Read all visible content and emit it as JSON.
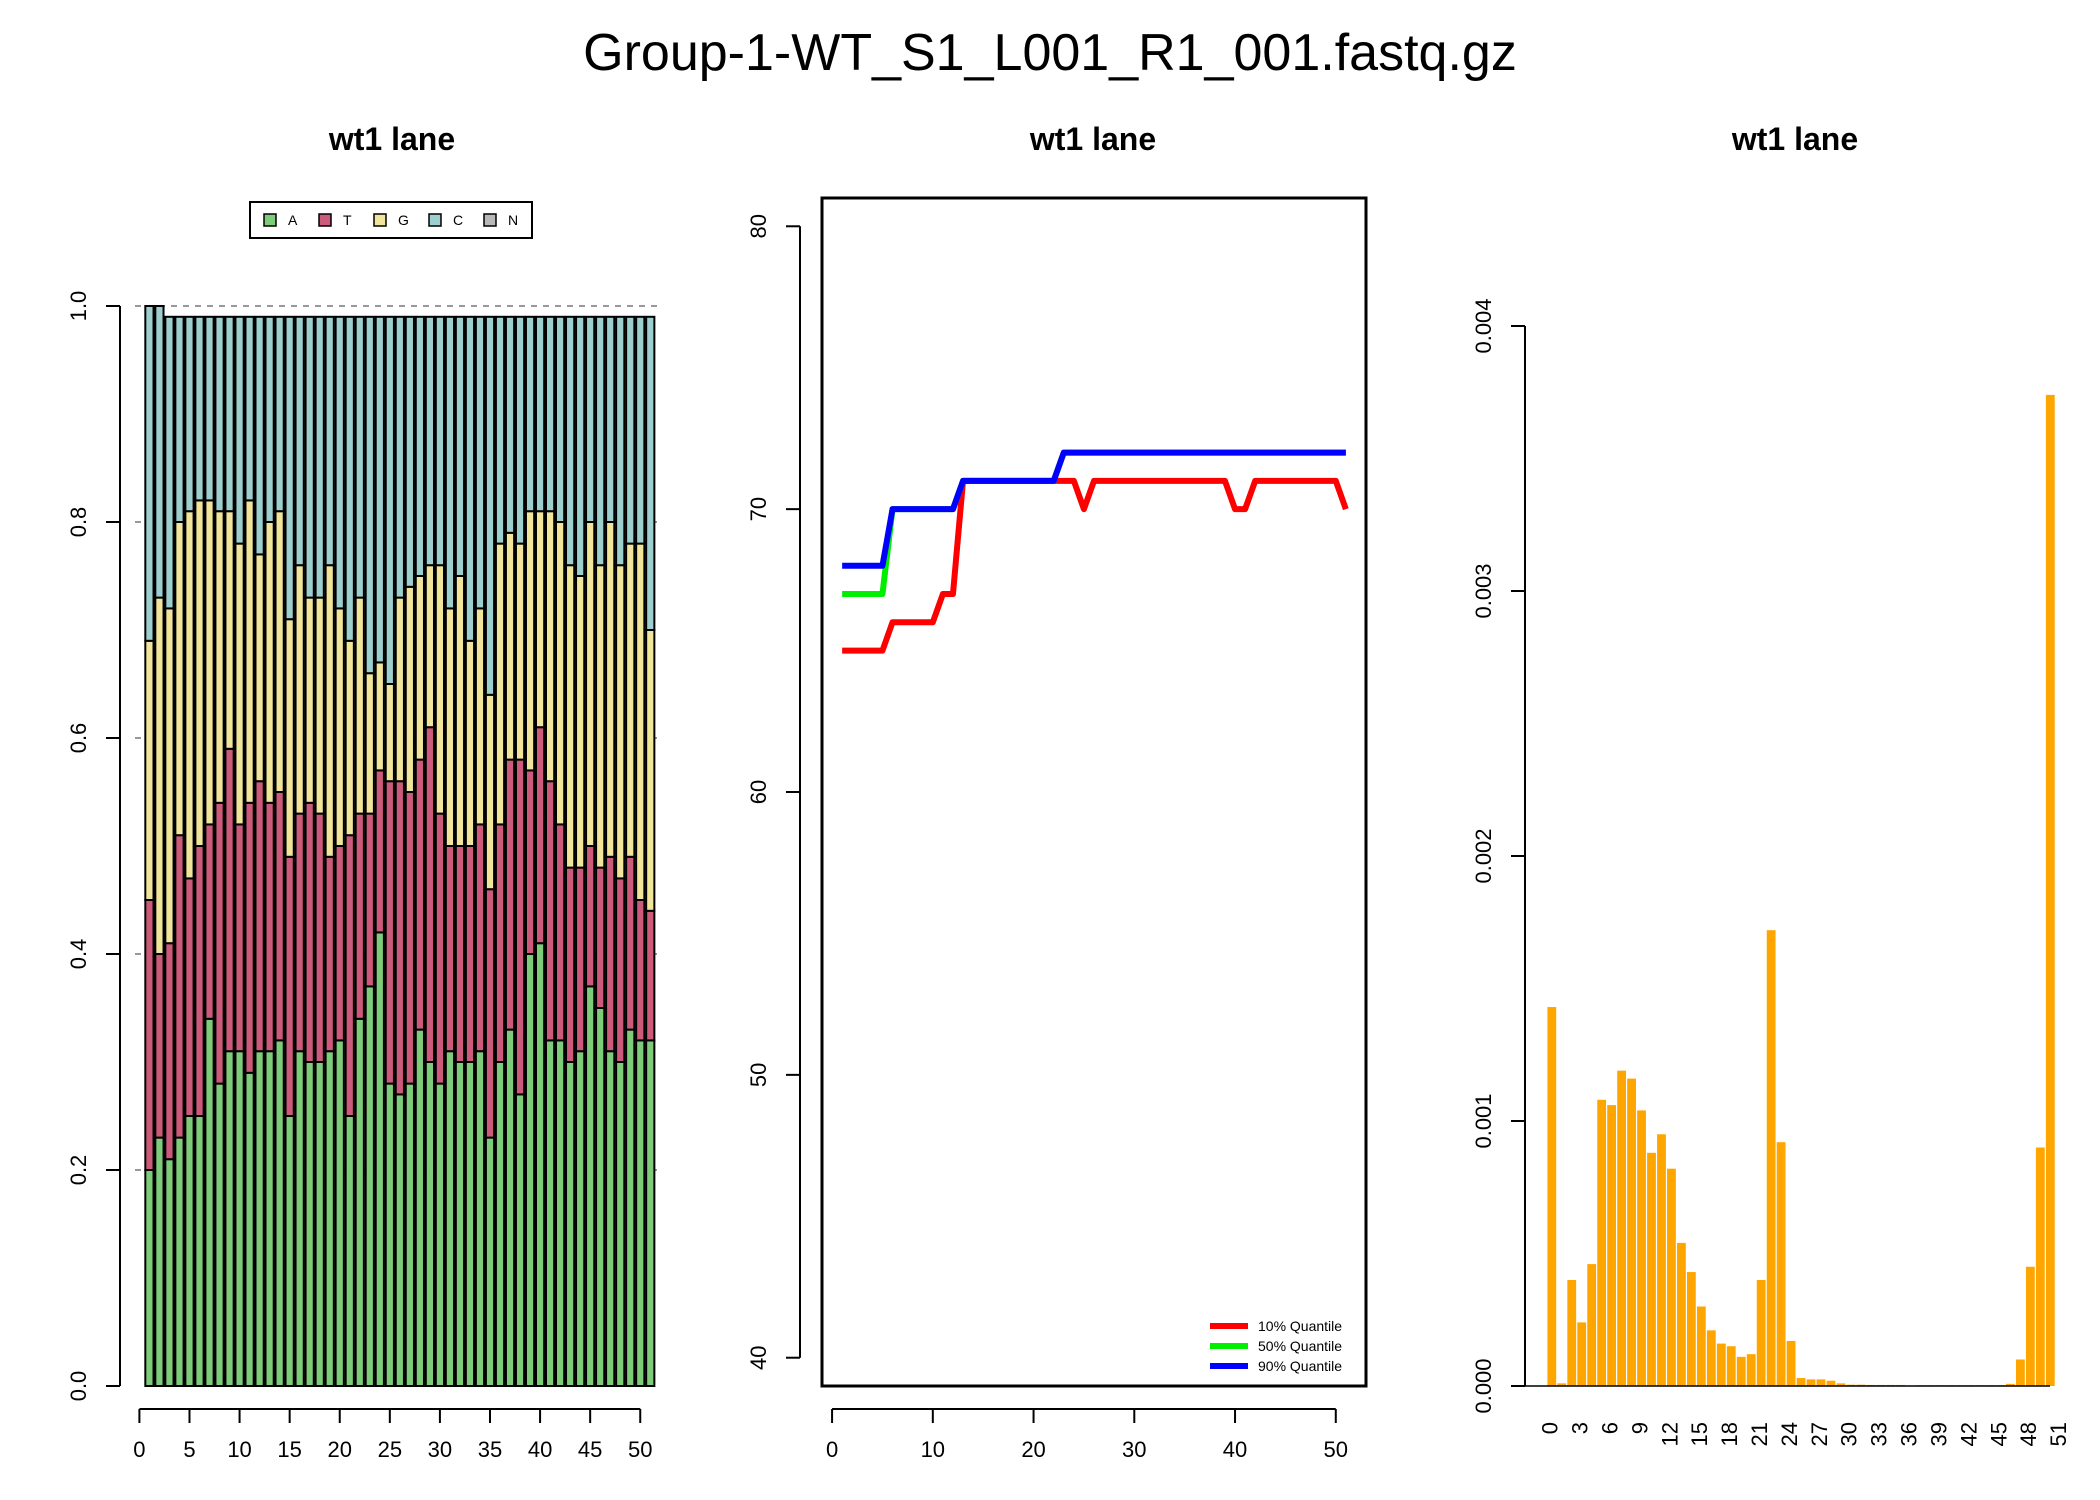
{
  "figure": {
    "title": "Group-1-WT_S1_L001_R1_001.fastq.gz",
    "panel_titles": [
      "wt1 lane",
      "wt1 lane",
      "wt1 lane"
    ]
  },
  "colors": {
    "A": "#7ECC7A",
    "T": "#CC5A7A",
    "G": "#F0E59A",
    "C": "#9ECFCF",
    "N": "#B8B8B8",
    "q10": "#FF0000",
    "q50": "#00EE00",
    "q90": "#0000FF",
    "bar": "#FFA500",
    "grid": "#999999"
  },
  "chart_data": [
    {
      "type": "bar",
      "stacked": true,
      "title": "wt1 lane",
      "ylim": [
        0,
        1
      ],
      "y_ticks": [
        "0.0",
        "0.2",
        "0.4",
        "0.6",
        "0.8",
        "1.0"
      ],
      "x_ticks": [
        "0",
        "5",
        "10",
        "15",
        "20",
        "25",
        "30",
        "35",
        "40",
        "45",
        "50"
      ],
      "grid": "dashed horizontal at 0.2 intervals",
      "legend": {
        "placement": "top",
        "entries": [
          "A",
          "T",
          "G",
          "C",
          "N"
        ]
      },
      "x": [
        1,
        2,
        3,
        4,
        5,
        6,
        7,
        8,
        9,
        10,
        11,
        12,
        13,
        14,
        15,
        16,
        17,
        18,
        19,
        20,
        21,
        22,
        23,
        24,
        25,
        26,
        27,
        28,
        29,
        30,
        31,
        32,
        33,
        34,
        35,
        36,
        37,
        38,
        39,
        40,
        41,
        42,
        43,
        44,
        45,
        46,
        47,
        48,
        49,
        50,
        51
      ],
      "series": [
        {
          "name": "A",
          "values": [
            0.2,
            0.23,
            0.21,
            0.23,
            0.25,
            0.25,
            0.34,
            0.28,
            0.31,
            0.31,
            0.29,
            0.31,
            0.31,
            0.32,
            0.25,
            0.31,
            0.3,
            0.3,
            0.31,
            0.32,
            0.25,
            0.34,
            0.37,
            0.42,
            0.28,
            0.27,
            0.28,
            0.33,
            0.3,
            0.28,
            0.31,
            0.3,
            0.3,
            0.31,
            0.23,
            0.3,
            0.33,
            0.27,
            0.4,
            0.41,
            0.32,
            0.32,
            0.3,
            0.31,
            0.37,
            0.35,
            0.31,
            0.3,
            0.33,
            0.32,
            0.32
          ]
        },
        {
          "name": "T",
          "values": [
            0.25,
            0.17,
            0.2,
            0.28,
            0.22,
            0.25,
            0.18,
            0.26,
            0.28,
            0.21,
            0.25,
            0.25,
            0.23,
            0.23,
            0.24,
            0.22,
            0.24,
            0.23,
            0.18,
            0.18,
            0.26,
            0.19,
            0.16,
            0.15,
            0.28,
            0.29,
            0.27,
            0.25,
            0.31,
            0.25,
            0.19,
            0.2,
            0.2,
            0.21,
            0.23,
            0.22,
            0.25,
            0.31,
            0.17,
            0.2,
            0.24,
            0.2,
            0.18,
            0.17,
            0.13,
            0.13,
            0.18,
            0.17,
            0.16,
            0.13,
            0.12
          ]
        },
        {
          "name": "G",
          "values": [
            0.24,
            0.33,
            0.31,
            0.29,
            0.34,
            0.32,
            0.3,
            0.27,
            0.22,
            0.26,
            0.28,
            0.21,
            0.26,
            0.26,
            0.22,
            0.23,
            0.19,
            0.2,
            0.27,
            0.22,
            0.18,
            0.2,
            0.13,
            0.1,
            0.09,
            0.17,
            0.19,
            0.17,
            0.15,
            0.23,
            0.22,
            0.25,
            0.19,
            0.2,
            0.18,
            0.26,
            0.21,
            0.2,
            0.24,
            0.2,
            0.25,
            0.28,
            0.28,
            0.27,
            0.3,
            0.28,
            0.31,
            0.29,
            0.29,
            0.33,
            0.26
          ]
        },
        {
          "name": "C",
          "values": [
            0.31,
            0.27,
            0.27,
            0.19,
            0.18,
            0.17,
            0.17,
            0.18,
            0.18,
            0.21,
            0.17,
            0.22,
            0.19,
            0.18,
            0.28,
            0.23,
            0.26,
            0.26,
            0.23,
            0.27,
            0.3,
            0.26,
            0.33,
            0.32,
            0.34,
            0.26,
            0.25,
            0.24,
            0.23,
            0.23,
            0.27,
            0.24,
            0.3,
            0.27,
            0.35,
            0.21,
            0.2,
            0.21,
            0.18,
            0.18,
            0.18,
            0.19,
            0.23,
            0.24,
            0.19,
            0.23,
            0.19,
            0.23,
            0.21,
            0.21,
            0.29
          ]
        },
        {
          "name": "N",
          "values": [
            0,
            0,
            0,
            0,
            0,
            0,
            0,
            0,
            0,
            0,
            0,
            0,
            0,
            0,
            0,
            0,
            0,
            0,
            0,
            0,
            0,
            0,
            0,
            0,
            0,
            0,
            0,
            0,
            0,
            0,
            0,
            0,
            0,
            0,
            0,
            0,
            0,
            0,
            0,
            0,
            0,
            0,
            0,
            0,
            0,
            0,
            0,
            0,
            0,
            0,
            0
          ]
        }
      ]
    },
    {
      "type": "line",
      "title": "wt1 lane",
      "ylim": [
        39,
        81
      ],
      "xlim": [
        -1,
        53
      ],
      "y_ticks": [
        "40",
        "50",
        "60",
        "70",
        "80"
      ],
      "x_ticks": [
        "0",
        "10",
        "20",
        "30",
        "40",
        "50"
      ],
      "legend": {
        "placement": "bottom-right",
        "entries": [
          "10% Quantile",
          "50% Quantile",
          "90% Quantile"
        ]
      },
      "x": [
        1,
        2,
        3,
        4,
        5,
        6,
        7,
        8,
        9,
        10,
        11,
        12,
        13,
        14,
        15,
        16,
        17,
        18,
        19,
        20,
        21,
        22,
        23,
        24,
        25,
        26,
        27,
        28,
        29,
        30,
        31,
        32,
        33,
        34,
        35,
        36,
        37,
        38,
        39,
        40,
        41,
        42,
        43,
        44,
        45,
        46,
        47,
        48,
        49,
        50,
        51
      ],
      "series": [
        {
          "name": "10% Quantile",
          "values": [
            65,
            65,
            65,
            65,
            65,
            66,
            66,
            66,
            66,
            66,
            67,
            67,
            71,
            71,
            71,
            71,
            71,
            71,
            71,
            71,
            71,
            71,
            71,
            71,
            70,
            71,
            71,
            71,
            71,
            71,
            71,
            71,
            71,
            71,
            71,
            71,
            71,
            71,
            71,
            70,
            70,
            71,
            71,
            71,
            71,
            71,
            71,
            71,
            71,
            71,
            70
          ]
        },
        {
          "name": "50% Quantile",
          "values": [
            67,
            67,
            67,
            67,
            67,
            70,
            70,
            70,
            70,
            70,
            70,
            70,
            71,
            71,
            71,
            71,
            71,
            71,
            71,
            71,
            71,
            71,
            72,
            72,
            72,
            72,
            72,
            72,
            72,
            72,
            72,
            72,
            72,
            72,
            72,
            72,
            72,
            72,
            72,
            72,
            72,
            72,
            72,
            72,
            72,
            72,
            72,
            72,
            72,
            72,
            72
          ]
        },
        {
          "name": "90% Quantile",
          "values": [
            68,
            68,
            68,
            68,
            68,
            70,
            70,
            70,
            70,
            70,
            70,
            70,
            71,
            71,
            71,
            71,
            71,
            71,
            71,
            71,
            71,
            71,
            72,
            72,
            72,
            72,
            72,
            72,
            72,
            72,
            72,
            72,
            72,
            72,
            72,
            72,
            72,
            72,
            72,
            72,
            72,
            72,
            72,
            72,
            72,
            72,
            72,
            72,
            72,
            72,
            72
          ]
        }
      ]
    },
    {
      "type": "bar",
      "title": "wt1 lane",
      "ylim": [
        0,
        0.004
      ],
      "y_ticks": [
        "0.000",
        "0.001",
        "0.002",
        "0.003",
        "0.004"
      ],
      "x_ticks": [
        "0",
        "3",
        "6",
        "9",
        "12",
        "15",
        "18",
        "21",
        "24",
        "27",
        "30",
        "33",
        "36",
        "39",
        "42",
        "45",
        "48",
        "51"
      ],
      "categories": [
        0,
        1,
        2,
        3,
        4,
        5,
        6,
        7,
        8,
        9,
        10,
        11,
        12,
        13,
        14,
        15,
        16,
        17,
        18,
        19,
        20,
        21,
        22,
        23,
        24,
        25,
        26,
        27,
        28,
        29,
        30,
        31,
        32,
        33,
        34,
        35,
        36,
        37,
        38,
        39,
        40,
        41,
        42,
        43,
        44,
        45,
        46,
        47,
        48,
        49,
        50,
        51
      ],
      "values": [
        0.00143,
        1e-05,
        0.0004,
        0.00024,
        0.00046,
        0.00108,
        0.00106,
        0.00119,
        0.00116,
        0.00104,
        0.00088,
        0.00095,
        0.00082,
        0.00054,
        0.00043,
        0.0003,
        0.00021,
        0.00016,
        0.00015,
        0.00011,
        0.00012,
        0.0004,
        0.00172,
        0.00092,
        0.00017,
        3e-05,
        2.5e-05,
        2.5e-05,
        2e-05,
        1e-05,
        5e-06,
        5e-06,
        4e-06,
        4e-06,
        4e-06,
        4e-06,
        2e-06,
        3e-06,
        3e-06,
        3e-06,
        3e-06,
        3e-06,
        3e-06,
        3e-06,
        3e-06,
        3e-06,
        8e-06,
        0.0001,
        0.00045,
        0.0009,
        0.00374,
        0.0
      ]
    }
  ]
}
